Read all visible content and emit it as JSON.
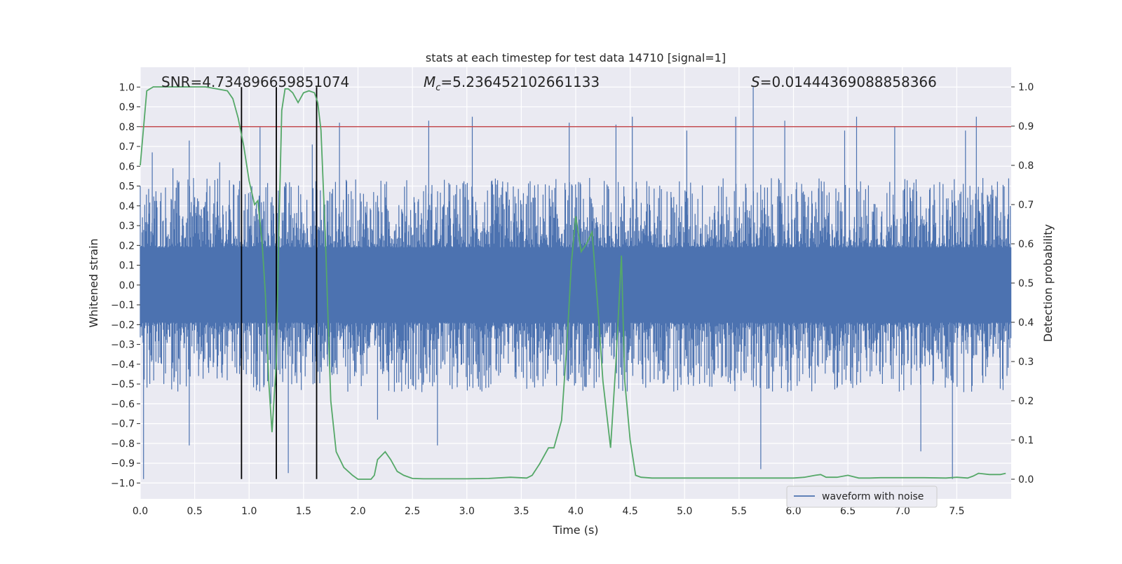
{
  "chart_data": {
    "type": "line",
    "title": "stats at each timestep for test data 14710 [signal=1]",
    "xlabel": "Time (s)",
    "ylabel_left": "Whitened strain",
    "ylabel_right": "Detection probability",
    "xlim": [
      0,
      8.0
    ],
    "ylim_left": [
      -1.08,
      1.1
    ],
    "ylim_right": [
      -0.05,
      1.05
    ],
    "x_ticks": [
      0.0,
      0.5,
      1.0,
      1.5,
      2.0,
      2.5,
      3.0,
      3.5,
      4.0,
      4.5,
      5.0,
      5.5,
      6.0,
      6.5,
      7.0,
      7.5
    ],
    "x_tick_labels": [
      "0.0",
      "0.5",
      "1.0",
      "1.5",
      "2.0",
      "2.5",
      "3.0",
      "3.5",
      "4.0",
      "4.5",
      "5.0",
      "5.5",
      "6.0",
      "6.5",
      "7.0",
      "7.5"
    ],
    "y_ticks_left": [
      1.0,
      0.9,
      0.8,
      0.7,
      0.6,
      0.5,
      0.4,
      0.3,
      0.2,
      0.1,
      0.0,
      -0.1,
      -0.2,
      -0.3,
      -0.4,
      -0.5,
      -0.6,
      -0.7,
      -0.8,
      -0.9,
      -1.0
    ],
    "y_tick_labels_left": [
      "1.0",
      "0.9",
      "0.8",
      "0.7",
      "0.6",
      "0.5",
      "0.4",
      "0.3",
      "0.2",
      "0.1",
      "0.0",
      "−0.1",
      "−0.2",
      "−0.3",
      "−0.4",
      "−0.5",
      "−0.6",
      "−0.7",
      "−0.8",
      "−0.9",
      "−1.0"
    ],
    "y_ticks_right": [
      1.0,
      0.9,
      0.8,
      0.7,
      0.6,
      0.5,
      0.4,
      0.3,
      0.2,
      0.1,
      0.0
    ],
    "y_tick_labels_right": [
      "1.0",
      "0.9",
      "0.8",
      "0.7",
      "0.6",
      "0.5",
      "0.4",
      "0.3",
      "0.2",
      "0.1",
      "0.0"
    ],
    "grid": true,
    "legend_position": "lower-right",
    "annotations": {
      "snr": "SNR=4.734896659851074",
      "mc_symbol": "M",
      "mc_sub": "c",
      "mc_value": "=5.236452102661133",
      "s_symbol": "S",
      "s_value": "=0.01444369088858366"
    },
    "threshold": {
      "axis": "left",
      "y": 0.8,
      "color": "#c44e52"
    },
    "vertical_markers": {
      "x": [
        0.93,
        1.25,
        1.62
      ],
      "ymin": -0.98,
      "ymax": 1.0,
      "color": "#000000"
    },
    "series": [
      {
        "name": "waveform with noise",
        "axis": "left",
        "color": "#4c72b0",
        "style": "dense-noise",
        "core_amplitude": 0.19,
        "typical_peak": 0.45,
        "peaks": [
          {
            "x": 0.03,
            "y": -0.98
          },
          {
            "x": 0.11,
            "y": 0.67
          },
          {
            "x": 0.3,
            "y": 0.59
          },
          {
            "x": 0.45,
            "y": 0.73
          },
          {
            "x": 0.45,
            "y": -0.81
          },
          {
            "x": 0.73,
            "y": 0.62
          },
          {
            "x": 1.1,
            "y": 0.8
          },
          {
            "x": 1.2,
            "y": -0.6
          },
          {
            "x": 1.36,
            "y": -0.95
          },
          {
            "x": 1.58,
            "y": 0.71
          },
          {
            "x": 1.83,
            "y": 0.82
          },
          {
            "x": 2.18,
            "y": -0.68
          },
          {
            "x": 2.65,
            "y": 0.83
          },
          {
            "x": 2.73,
            "y": -0.81
          },
          {
            "x": 3.05,
            "y": 0.85
          },
          {
            "x": 3.94,
            "y": 0.82
          },
          {
            "x": 4.37,
            "y": 0.81
          },
          {
            "x": 4.52,
            "y": 0.85
          },
          {
            "x": 5.02,
            "y": 0.78
          },
          {
            "x": 5.47,
            "y": 0.85
          },
          {
            "x": 5.63,
            "y": 1.0
          },
          {
            "x": 5.7,
            "y": -0.93
          },
          {
            "x": 5.92,
            "y": 0.83
          },
          {
            "x": 6.47,
            "y": 0.78
          },
          {
            "x": 6.58,
            "y": 0.85
          },
          {
            "x": 6.93,
            "y": 0.8
          },
          {
            "x": 7.17,
            "y": -0.84
          },
          {
            "x": 7.46,
            "y": -0.98
          },
          {
            "x": 7.58,
            "y": 0.78
          },
          {
            "x": 7.68,
            "y": 0.85
          }
        ]
      },
      {
        "name": "Detection probability",
        "axis": "right",
        "color": "#55a868",
        "x": [
          0.0,
          0.06,
          0.12,
          0.2,
          0.3,
          0.5,
          0.6,
          0.7,
          0.8,
          0.85,
          0.9,
          0.95,
          1.0,
          1.05,
          1.08,
          1.12,
          1.15,
          1.18,
          1.21,
          1.25,
          1.27,
          1.3,
          1.33,
          1.36,
          1.4,
          1.45,
          1.5,
          1.55,
          1.6,
          1.63,
          1.66,
          1.7,
          1.75,
          1.8,
          1.87,
          1.95,
          2.0,
          2.05,
          2.12,
          2.15,
          2.18,
          2.25,
          2.3,
          2.36,
          2.42,
          2.5,
          2.6,
          2.8,
          3.0,
          3.2,
          3.4,
          3.55,
          3.6,
          3.67,
          3.75,
          3.8,
          3.87,
          3.92,
          3.96,
          4.0,
          4.05,
          4.1,
          4.15,
          4.2,
          4.25,
          4.32,
          4.37,
          4.42,
          4.45,
          4.5,
          4.55,
          4.6,
          4.7,
          4.8,
          5.0,
          5.2,
          5.4,
          5.5,
          5.7,
          6.0,
          6.1,
          6.2,
          6.25,
          6.3,
          6.4,
          6.5,
          6.6,
          6.7,
          6.8,
          7.0,
          7.2,
          7.4,
          7.5,
          7.6,
          7.65,
          7.7,
          7.8,
          7.9,
          7.95
        ],
        "y": [
          0.8,
          0.99,
          1.0,
          1.0,
          1.0,
          1.0,
          1.0,
          0.995,
          0.99,
          0.97,
          0.92,
          0.85,
          0.76,
          0.7,
          0.71,
          0.6,
          0.47,
          0.25,
          0.12,
          0.3,
          0.6,
          0.94,
          0.995,
          0.995,
          0.985,
          0.96,
          0.985,
          0.99,
          0.985,
          0.96,
          0.89,
          0.62,
          0.2,
          0.07,
          0.03,
          0.01,
          0.0,
          0.0,
          0.0,
          0.01,
          0.05,
          0.07,
          0.05,
          0.02,
          0.01,
          0.002,
          0.001,
          0.001,
          0.001,
          0.002,
          0.005,
          0.003,
          0.01,
          0.04,
          0.08,
          0.08,
          0.15,
          0.35,
          0.55,
          0.67,
          0.58,
          0.6,
          0.63,
          0.45,
          0.25,
          0.08,
          0.3,
          0.57,
          0.25,
          0.1,
          0.01,
          0.005,
          0.003,
          0.003,
          0.003,
          0.003,
          0.003,
          0.003,
          0.003,
          0.003,
          0.005,
          0.01,
          0.012,
          0.005,
          0.005,
          0.01,
          0.003,
          0.003,
          0.004,
          0.004,
          0.004,
          0.003,
          0.005,
          0.003,
          0.008,
          0.015,
          0.012,
          0.012,
          0.015
        ]
      }
    ]
  }
}
